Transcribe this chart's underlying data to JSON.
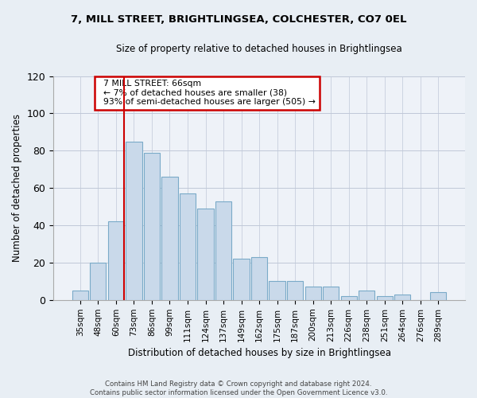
{
  "title": "7, MILL STREET, BRIGHTLINGSEA, COLCHESTER, CO7 0EL",
  "subtitle": "Size of property relative to detached houses in Brightlingsea",
  "xlabel": "Distribution of detached houses by size in Brightlingsea",
  "ylabel": "Number of detached properties",
  "bar_color": "#c9d9ea",
  "bar_edge_color": "#7aaac8",
  "categories": [
    "35sqm",
    "48sqm",
    "60sqm",
    "73sqm",
    "86sqm",
    "99sqm",
    "111sqm",
    "124sqm",
    "137sqm",
    "149sqm",
    "162sqm",
    "175sqm",
    "187sqm",
    "200sqm",
    "213sqm",
    "226sqm",
    "238sqm",
    "251sqm",
    "264sqm",
    "276sqm",
    "289sqm"
  ],
  "values": [
    5,
    20,
    42,
    85,
    79,
    66,
    57,
    49,
    53,
    22,
    23,
    10,
    10,
    7,
    7,
    2,
    5,
    2,
    3,
    0,
    4
  ],
  "ylim": [
    0,
    120
  ],
  "yticks": [
    0,
    20,
    40,
    60,
    80,
    100,
    120
  ],
  "red_line_index": 2,
  "annotation_title": "7 MILL STREET: 66sqm",
  "annotation_line1": "← 7% of detached houses are smaller (38)",
  "annotation_line2": "93% of semi-detached houses are larger (505) →",
  "annotation_box_color": "#ffffff",
  "annotation_box_edge": "#cc0000",
  "footer1": "Contains HM Land Registry data © Crown copyright and database right 2024.",
  "footer2": "Contains public sector information licensed under the Open Government Licence v3.0.",
  "bg_color": "#e8eef4",
  "plot_bg_color": "#eef2f8",
  "grid_color": "#c0c8d8"
}
